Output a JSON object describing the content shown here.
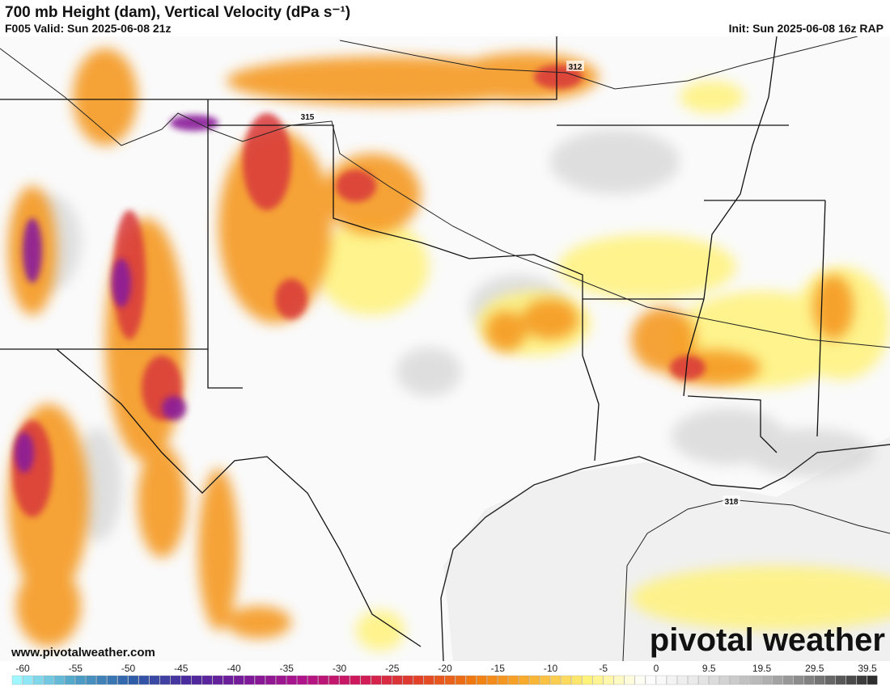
{
  "header": {
    "title": "700 mb Height (dam), Vertical Velocity (dPa s⁻¹)",
    "valid": "F005 Valid: Sun 2025-06-08 21z",
    "init": "Init: Sun 2025-06-08 16z RAP"
  },
  "contour_labels": [
    "312",
    "315",
    "318"
  ],
  "footer": {
    "website": "www.pivotalweather.com",
    "logo": "pivotal weather"
  },
  "colorbar": {
    "ticks": [
      -60,
      -55,
      -50,
      -45,
      -40,
      -35,
      -30,
      -25,
      -20,
      -15,
      -10,
      -5,
      0,
      9.5,
      19.5,
      29.5,
      39.5
    ],
    "stops": [
      "#9ef6ff",
      "#4fa3c7",
      "#2f5fa8",
      "#4b2a9e",
      "#7a1a9a",
      "#b0148a",
      "#d0185a",
      "#e0402a",
      "#f07a10",
      "#f8b030",
      "#fff27a",
      "#ffffff",
      "#e6e6e6",
      "#b8b8b8",
      "#7a7a7a",
      "#2e2e2e"
    ]
  }
}
